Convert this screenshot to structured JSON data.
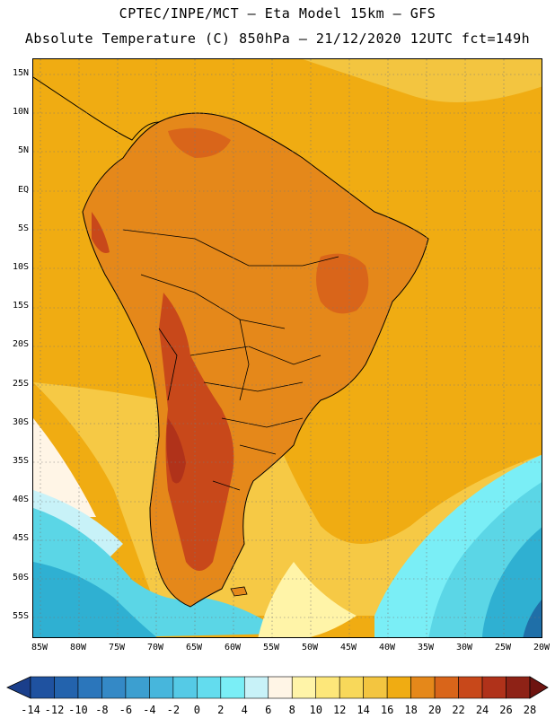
{
  "header": {
    "line1": "CPTEC/INPE/MCT –  Eta Model 15km – GFS",
    "line2": "Absolute Temperature (C) 850hPa – 21/12/2020 12UTC fct=149h"
  },
  "map": {
    "lat_labels": [
      "15N",
      "10N",
      "5N",
      "EQ",
      "5S",
      "10S",
      "15S",
      "20S",
      "25S",
      "30S",
      "35S",
      "40S",
      "45S",
      "50S",
      "55S"
    ],
    "lon_labels": [
      "85W",
      "80W",
      "75W",
      "70W",
      "65W",
      "60W",
      "55W",
      "50W",
      "45W",
      "40W",
      "35W",
      "30W",
      "25W",
      "20W"
    ],
    "colors": {
      "ocean_warm": "#f0ac12",
      "ocean_pale": "#f6c945",
      "land_hot": "#e07d1c",
      "land_hotter": "#c85a18",
      "cool_light": "#5bd6e6",
      "cool_mid": "#2fb0d2",
      "cool_dark": "#1f6fa8",
      "coast": "#000000"
    }
  },
  "legend": {
    "ticks": [
      "-14",
      "-12",
      "-10",
      "-8",
      "-6",
      "-4",
      "-2",
      "0",
      "2",
      "4",
      "6",
      "8",
      "10",
      "12",
      "14",
      "16",
      "18",
      "20",
      "22",
      "24",
      "26",
      "28"
    ],
    "colors": [
      "#1b3f8b",
      "#1f52a0",
      "#2363ad",
      "#2b76bb",
      "#3489c6",
      "#3c9fd0",
      "#47b6dc",
      "#55cae6",
      "#63dcee",
      "#7aeef6",
      "#c8f2f8",
      "#fff5e6",
      "#fff4a8",
      "#fde77a",
      "#f8d85a",
      "#f3c540",
      "#f0ac12",
      "#e5881a",
      "#d9651a",
      "#c8481a",
      "#b0321a",
      "#8e2216",
      "#6e1410"
    ]
  }
}
